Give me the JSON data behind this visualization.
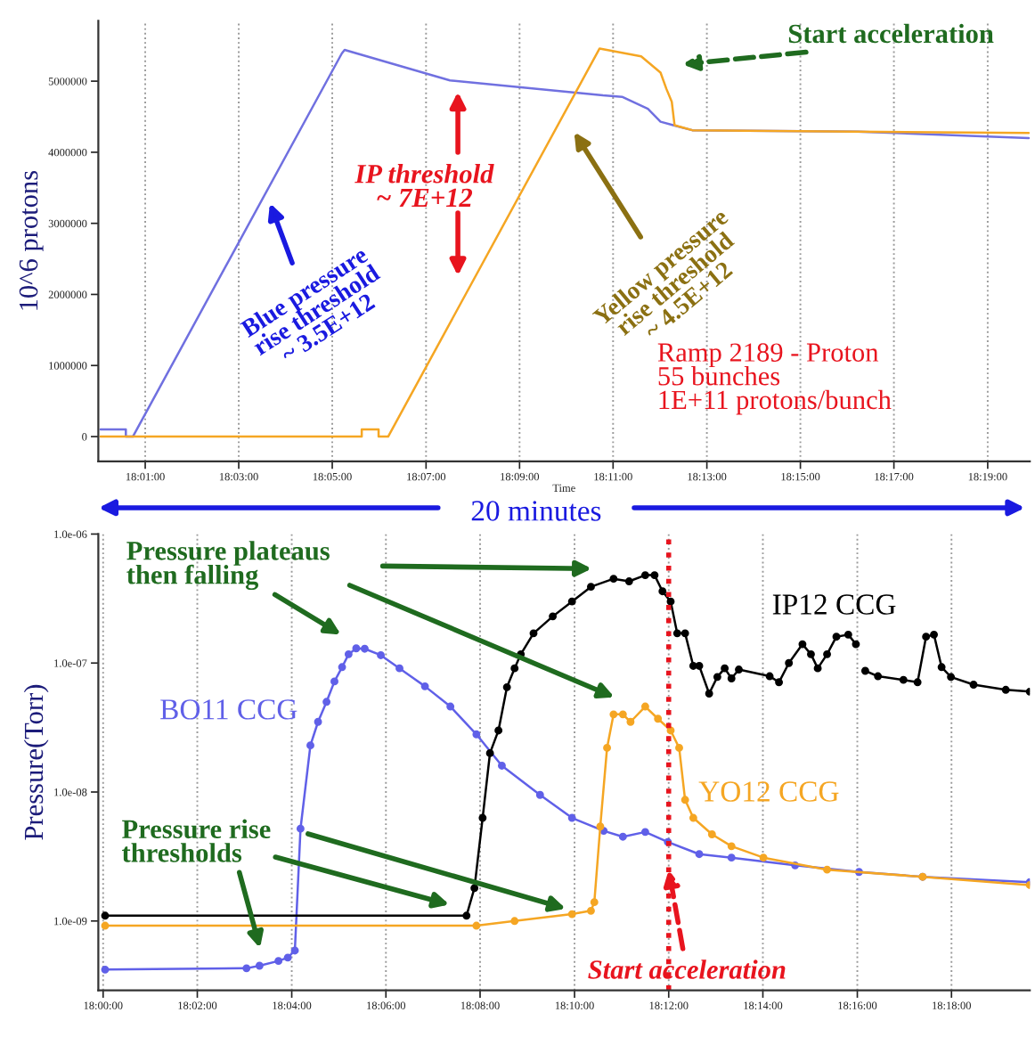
{
  "chart_data": [
    {
      "type": "line",
      "xlabel": "Time",
      "ylabel": "10^6 protons",
      "xlim": [
        18.0,
        18.3317
      ],
      "ylim": [
        -350000,
        5850000
      ],
      "xticks": [
        {
          "value": 18.0167,
          "label": "18:01:00"
        },
        {
          "value": 18.05,
          "label": "18:03:00"
        },
        {
          "value": 18.0833,
          "label": "18:05:00"
        },
        {
          "value": 18.1167,
          "label": "18:07:00"
        },
        {
          "value": 18.15,
          "label": "18:09:00"
        },
        {
          "value": 18.1833,
          "label": "18:11:00"
        },
        {
          "value": 18.2167,
          "label": "18:13:00"
        },
        {
          "value": 18.25,
          "label": "18:15:00"
        },
        {
          "value": 18.2833,
          "label": "18:17:00"
        },
        {
          "value": 18.3167,
          "label": "18:19:00"
        }
      ],
      "yticks": [
        0,
        1000000,
        2000000,
        3000000,
        4000000,
        5000000
      ],
      "grid": "x",
      "marker": "none",
      "line_style": "solid",
      "series": [
        {
          "color": "#7070e0",
          "x": [
            18.0008,
            18.0098,
            18.0098,
            18.0123,
            18.0867,
            18.0877,
            18.1252,
            18.1797,
            18.1865,
            18.1957,
            18.2002,
            18.2047,
            18.2115,
            18.2705,
            18.3313
          ],
          "values": [
            100000,
            100000,
            0,
            0,
            5390000,
            5440000,
            5010000,
            4800000,
            4780000,
            4610000,
            4430000,
            4380000,
            4310000,
            4290000,
            4200000
          ]
        },
        {
          "color": "#f5a623",
          "x": [
            18.0008,
            18.0938,
            18.0938,
            18.0998,
            18.0998,
            18.1032,
            18.1785,
            18.1933,
            18.2002,
            18.2023,
            18.2042,
            18.2052,
            18.2115,
            18.3313
          ],
          "values": [
            0,
            0,
            100000,
            100000,
            0,
            0,
            5460000,
            5350000,
            5120000,
            4890000,
            4710000,
            4380000,
            4310000,
            4270000
          ]
        }
      ],
      "annotations": [
        "Start acceleration",
        "IP threshold\n~ 7E+12",
        {
          "text": "Blue pressure\nrise threshold\n~ 3.5E+12",
          "x": 18.0605,
          "y": 3350000
        },
        "Yellow pressure\nrise threshold\n~ 4.5E+12",
        "Ramp 2189 - Proton\n55 bunches\n1E+11 protons/bunch",
        "20 minutes"
      ]
    },
    {
      "type": "line",
      "ylabel": "Pressure(Torr)",
      "log": "y",
      "xlim": [
        17.9983,
        18.3277
      ],
      "ylim": [
        2.9e-10,
        1e-06
      ],
      "xticks": [
        {
          "value": 18.0,
          "label": "18:00:00"
        },
        {
          "value": 18.0333,
          "label": "18:02:00"
        },
        {
          "value": 18.0667,
          "label": "18:04:00"
        },
        {
          "value": 18.1,
          "label": "18:06:00"
        },
        {
          "value": 18.1333,
          "label": "18:08:00"
        },
        {
          "value": 18.1667,
          "label": "18:10:00"
        },
        {
          "value": 18.2,
          "label": "18:12:00"
        },
        {
          "value": 18.2333,
          "label": "18:14:00"
        },
        {
          "value": 18.2667,
          "label": "18:16:00"
        },
        {
          "value": 18.3,
          "label": "18:18:00"
        }
      ],
      "yticks": [
        {
          "value": 1e-09,
          "label": "1.0e-09"
        },
        {
          "value": 1e-08,
          "label": "1.0e-08"
        },
        {
          "value": 1e-07,
          "label": "1.0e-07"
        },
        {
          "value": 1e-06,
          "label": "1.0e-06"
        }
      ],
      "grid": "x",
      "marker": "circle",
      "line_style": "solid",
      "series": [
        {
          "name": "BO11 CCG",
          "color": "#6060e8",
          "x": [
            18.0007,
            18.0507,
            18.0553,
            18.062,
            18.0653,
            18.0678,
            18.0698,
            18.0733,
            18.076,
            18.079,
            18.0818,
            18.0845,
            18.0868,
            18.0895,
            18.0925,
            18.0982,
            18.1048,
            18.1138,
            18.1228,
            18.132,
            18.141,
            18.1545,
            18.1658,
            18.177,
            18.1838,
            18.1917,
            18.1997,
            18.2108,
            18.2222,
            18.2447,
            18.2673,
            18.2898,
            18.3277
          ],
          "values": [
            4.2e-10,
            4.3e-10,
            4.5e-10,
            4.9e-10,
            5.2e-10,
            5.9e-10,
            5.2e-09,
            2.3e-08,
            3.5e-08,
            5e-08,
            7.2e-08,
            9.3e-08,
            1.17e-07,
            1.3e-07,
            1.29e-07,
            1.15e-07,
            9.1e-08,
            6.6e-08,
            4.6e-08,
            2.8e-08,
            1.6e-08,
            9.5e-09,
            6.3e-09,
            5e-09,
            4.5e-09,
            4.9e-09,
            4.1e-09,
            3.3e-09,
            3.1e-09,
            2.7e-09,
            2.4e-09,
            2.2e-09,
            2e-09
          ]
        },
        {
          "name": "YO12 CCG",
          "color": "#f5a623",
          "x": [
            18.0007,
            18.132,
            18.1455,
            18.1658,
            18.1725,
            18.1737,
            18.1758,
            18.1782,
            18.1805,
            18.1838,
            18.1865,
            18.1917,
            18.1962,
            18.2007,
            18.2037,
            18.2058,
            18.2087,
            18.2153,
            18.2222,
            18.2335,
            18.256,
            18.2898,
            18.3277
          ],
          "values": [
            9.2e-10,
            9.2e-10,
            1e-09,
            1.13e-09,
            1.2e-09,
            1.4e-09,
            5.4e-09,
            2.2e-08,
            4e-08,
            4e-08,
            3.5e-08,
            4.6e-08,
            3.7e-08,
            3e-08,
            2.2e-08,
            8.7e-09,
            6.3e-09,
            4.7e-09,
            3.8e-09,
            3.1e-09,
            2.5e-09,
            2.2e-09,
            1.9e-09
          ]
        },
        {
          "name": "IP12 CCG",
          "color": "#000000",
          "x": [
            18.0007,
            18.1285,
            18.1313,
            18.1342,
            18.1368,
            18.1398,
            18.1428,
            18.1455,
            18.1477,
            18.1522,
            18.159,
            18.1658,
            18.1725,
            18.1805,
            18.186,
            18.1917,
            18.195,
            18.1978,
            18.2007,
            18.203,
            18.2058,
            18.2087,
            18.2108,
            18.2143,
            18.2172,
            18.2198,
            18.2222,
            18.2248,
            18.2357,
            18.239,
            18.2425,
            18.2473,
            18.2503,
            18.2527,
            18.256,
            18.2593,
            18.2635,
            18.2662,
            18.2678,
            18.2695,
            18.274,
            18.283,
            18.288,
            18.291,
            18.2938,
            18.2965,
            18.2998,
            18.3078,
            18.3192,
            18.3277
          ],
          "values": [
            1.1e-09,
            1.1e-09,
            1.8e-09,
            6.3e-09,
            2e-08,
            3e-08,
            6.5e-08,
            9.1e-08,
            1.17e-07,
            1.7e-07,
            2.3e-07,
            3e-07,
            3.9e-07,
            4.5e-07,
            4.3e-07,
            4.8e-07,
            4.8e-07,
            3.6e-07,
            3e-07,
            1.7e-07,
            1.7e-07,
            9.5e-08,
            9.5e-08,
            5.8e-08,
            7.8e-08,
            9.1e-08,
            7.6e-08,
            8.9e-08,
            7.9e-08,
            7.1e-08,
            1e-07,
            1.4e-07,
            1.17e-07,
            9.1e-08,
            1.17e-07,
            1.6e-07,
            1.66e-07,
            1.4e-07,
            null,
            8.7e-08,
            7.9e-08,
            7.4e-08,
            7.1e-08,
            1.6e-07,
            1.66e-07,
            9.3e-08,
            7.8e-08,
            6.8e-08,
            6.2e-08,
            6e-08
          ]
        }
      ],
      "ref_lines": [
        {
          "axis": "x",
          "value": 18.2,
          "color": "#e8141e",
          "line_style": "dotted"
        }
      ],
      "annotations": [
        "Pressure plateaus\nthen falling",
        "Pressure rise\nthresholds",
        {
          "text": "Start acceleration",
          "x": 18.2,
          "y": 2.5e-09
        }
      ]
    }
  ]
}
